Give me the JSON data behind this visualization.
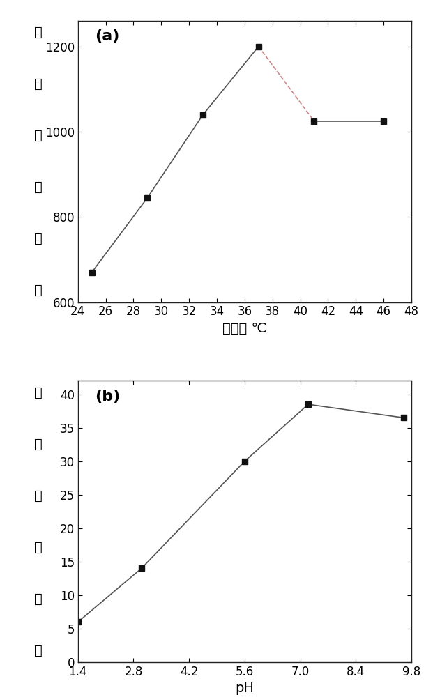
{
  "plot_a": {
    "x": [
      25,
      29,
      33,
      37,
      41,
      46
    ],
    "y": [
      670,
      845,
      1040,
      1200,
      1025,
      1025
    ],
    "xlabel": "温度， ℃",
    "ylabel_chars": [
      "倍",
      "，",
      "率",
      "倍",
      "水",
      "吸"
    ],
    "label": "(a)",
    "xlim": [
      24,
      48
    ],
    "ylim": [
      600,
      1260
    ],
    "xticks": [
      24,
      26,
      28,
      30,
      32,
      34,
      36,
      38,
      40,
      42,
      44,
      46,
      48
    ],
    "yticks": [
      600,
      800,
      1000,
      1200
    ],
    "dashed_start_idx": 4,
    "dashed_end_idx": 5
  },
  "plot_b": {
    "x": [
      1.4,
      3.0,
      5.6,
      7.2,
      9.6
    ],
    "y": [
      6.0,
      14.0,
      30.0,
      38.5,
      36.5
    ],
    "xlabel": "pH",
    "ylabel_chars": [
      "倍",
      "，",
      "率",
      "倍",
      "水",
      "吸"
    ],
    "label": "(b)",
    "xlim": [
      1.4,
      9.8
    ],
    "ylim": [
      0,
      42
    ],
    "xticks": [
      1.4,
      2.8,
      4.2,
      5.6,
      7.0,
      8.4,
      9.8
    ],
    "yticks": [
      0,
      5,
      10,
      15,
      20,
      25,
      30,
      35,
      40
    ]
  },
  "marker": "s",
  "marker_size": 6,
  "marker_color": "#111111",
  "line_color": "#555555",
  "line_width": 1.2,
  "dashed_line_color": "#cc8888",
  "dashed_line_style": "--",
  "background_color": "#ffffff",
  "label_fontsize": 16,
  "tick_fontsize": 12,
  "axis_label_fontsize": 14
}
